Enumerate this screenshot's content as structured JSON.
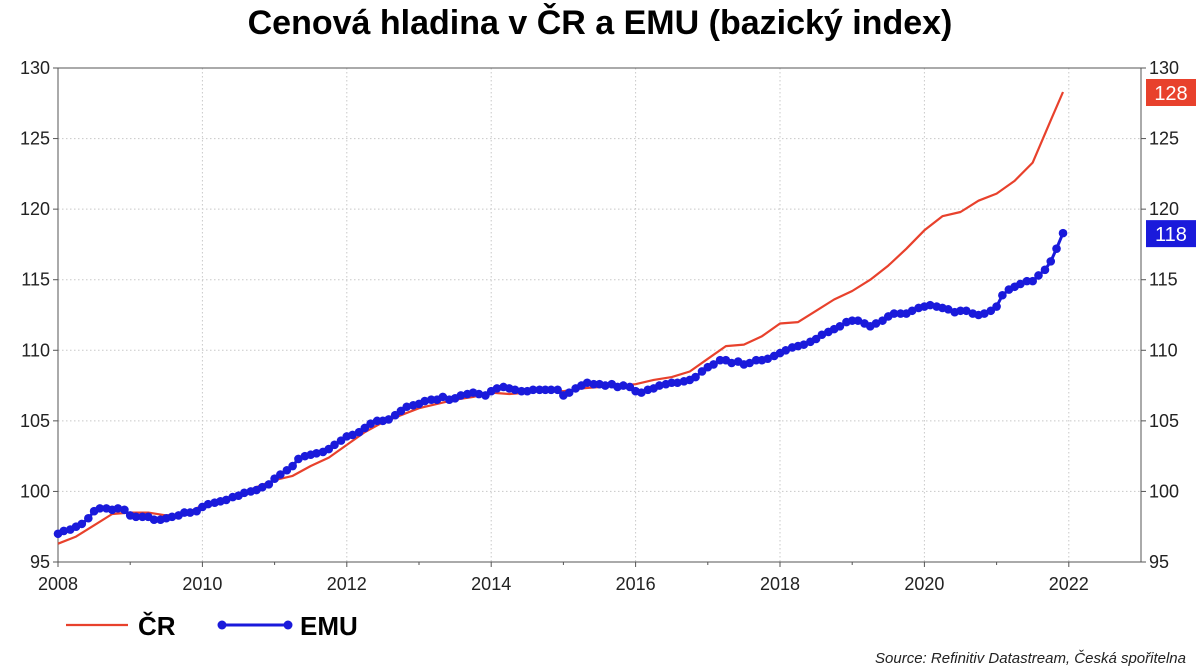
{
  "chart_data": {
    "type": "line",
    "title": "Cenová hladina v ČR a EMU (bazický index)",
    "source": "Source: Refinitiv Datastream, Česká spořitelna",
    "xlim": [
      2008,
      2023
    ],
    "ylim": [
      95,
      130
    ],
    "x_ticks": [
      "2008",
      "2010",
      "2012",
      "2014",
      "2016",
      "2018",
      "2020",
      "2022"
    ],
    "y_ticks": [
      "95",
      "100",
      "105",
      "110",
      "115",
      "120",
      "125",
      "130"
    ],
    "grid": true,
    "legend_position": "bottom-left",
    "series": [
      {
        "name": "ČR",
        "color": "#e8412c",
        "markers": false,
        "end_label": "128",
        "points": [
          [
            2008.0,
            96.3
          ],
          [
            2008.25,
            96.8
          ],
          [
            2008.5,
            97.6
          ],
          [
            2008.75,
            98.4
          ],
          [
            2009.0,
            98.5
          ],
          [
            2009.25,
            98.5
          ],
          [
            2009.5,
            98.3
          ],
          [
            2009.75,
            98.4
          ],
          [
            2010.0,
            99.0
          ],
          [
            2010.25,
            99.4
          ],
          [
            2010.5,
            99.8
          ],
          [
            2010.75,
            100.3
          ],
          [
            2011.0,
            100.8
          ],
          [
            2011.25,
            101.1
          ],
          [
            2011.5,
            101.8
          ],
          [
            2011.75,
            102.4
          ],
          [
            2012.0,
            103.3
          ],
          [
            2012.25,
            104.2
          ],
          [
            2012.5,
            104.9
          ],
          [
            2012.75,
            105.4
          ],
          [
            2013.0,
            105.9
          ],
          [
            2013.25,
            106.2
          ],
          [
            2013.5,
            106.5
          ],
          [
            2013.75,
            106.7
          ],
          [
            2014.0,
            107.0
          ],
          [
            2014.25,
            106.9
          ],
          [
            2014.5,
            107.0
          ],
          [
            2014.75,
            107.2
          ],
          [
            2015.0,
            107.1
          ],
          [
            2015.25,
            107.3
          ],
          [
            2015.5,
            107.4
          ],
          [
            2015.75,
            107.5
          ],
          [
            2016.0,
            107.6
          ],
          [
            2016.25,
            107.9
          ],
          [
            2016.5,
            108.1
          ],
          [
            2016.75,
            108.5
          ],
          [
            2017.0,
            109.4
          ],
          [
            2017.25,
            110.3
          ],
          [
            2017.5,
            110.4
          ],
          [
            2017.75,
            111.0
          ],
          [
            2018.0,
            111.9
          ],
          [
            2018.25,
            112.0
          ],
          [
            2018.5,
            112.8
          ],
          [
            2018.75,
            113.6
          ],
          [
            2019.0,
            114.2
          ],
          [
            2019.25,
            115.0
          ],
          [
            2019.5,
            116.0
          ],
          [
            2019.75,
            117.2
          ],
          [
            2020.0,
            118.5
          ],
          [
            2020.25,
            119.5
          ],
          [
            2020.5,
            119.8
          ],
          [
            2020.75,
            120.6
          ],
          [
            2021.0,
            121.1
          ],
          [
            2021.25,
            122.0
          ],
          [
            2021.5,
            123.3
          ],
          [
            2021.75,
            126.3
          ],
          [
            2021.92,
            128.3
          ]
        ]
      },
      {
        "name": "EMU",
        "color": "#1a1adb",
        "markers": true,
        "end_label": "118",
        "points": [
          [
            2008.0,
            97.0
          ],
          [
            2008.08,
            97.2
          ],
          [
            2008.17,
            97.3
          ],
          [
            2008.25,
            97.5
          ],
          [
            2008.33,
            97.7
          ],
          [
            2008.42,
            98.1
          ],
          [
            2008.5,
            98.6
          ],
          [
            2008.58,
            98.8
          ],
          [
            2008.67,
            98.8
          ],
          [
            2008.75,
            98.7
          ],
          [
            2008.83,
            98.8
          ],
          [
            2008.92,
            98.7
          ],
          [
            2009.0,
            98.3
          ],
          [
            2009.08,
            98.2
          ],
          [
            2009.17,
            98.2
          ],
          [
            2009.25,
            98.2
          ],
          [
            2009.33,
            98.0
          ],
          [
            2009.42,
            98.0
          ],
          [
            2009.5,
            98.1
          ],
          [
            2009.58,
            98.2
          ],
          [
            2009.67,
            98.3
          ],
          [
            2009.75,
            98.5
          ],
          [
            2009.83,
            98.5
          ],
          [
            2009.92,
            98.6
          ],
          [
            2010.0,
            98.9
          ],
          [
            2010.08,
            99.1
          ],
          [
            2010.17,
            99.2
          ],
          [
            2010.25,
            99.3
          ],
          [
            2010.33,
            99.4
          ],
          [
            2010.42,
            99.6
          ],
          [
            2010.5,
            99.7
          ],
          [
            2010.58,
            99.9
          ],
          [
            2010.67,
            100.0
          ],
          [
            2010.75,
            100.1
          ],
          [
            2010.83,
            100.3
          ],
          [
            2010.92,
            100.5
          ],
          [
            2011.0,
            100.9
          ],
          [
            2011.08,
            101.2
          ],
          [
            2011.17,
            101.5
          ],
          [
            2011.25,
            101.8
          ],
          [
            2011.33,
            102.3
          ],
          [
            2011.42,
            102.5
          ],
          [
            2011.5,
            102.6
          ],
          [
            2011.58,
            102.7
          ],
          [
            2011.67,
            102.8
          ],
          [
            2011.75,
            103.0
          ],
          [
            2011.83,
            103.3
          ],
          [
            2011.92,
            103.6
          ],
          [
            2012.0,
            103.9
          ],
          [
            2012.08,
            104.0
          ],
          [
            2012.17,
            104.2
          ],
          [
            2012.25,
            104.5
          ],
          [
            2012.33,
            104.8
          ],
          [
            2012.42,
            105.0
          ],
          [
            2012.5,
            105.0
          ],
          [
            2012.58,
            105.1
          ],
          [
            2012.67,
            105.4
          ],
          [
            2012.75,
            105.7
          ],
          [
            2012.83,
            106.0
          ],
          [
            2012.92,
            106.1
          ],
          [
            2013.0,
            106.2
          ],
          [
            2013.08,
            106.4
          ],
          [
            2013.17,
            106.5
          ],
          [
            2013.25,
            106.5
          ],
          [
            2013.33,
            106.7
          ],
          [
            2013.42,
            106.5
          ],
          [
            2013.5,
            106.6
          ],
          [
            2013.58,
            106.8
          ],
          [
            2013.67,
            106.9
          ],
          [
            2013.75,
            107.0
          ],
          [
            2013.83,
            106.9
          ],
          [
            2013.92,
            106.8
          ],
          [
            2014.0,
            107.1
          ],
          [
            2014.08,
            107.3
          ],
          [
            2014.17,
            107.4
          ],
          [
            2014.25,
            107.3
          ],
          [
            2014.33,
            107.2
          ],
          [
            2014.42,
            107.1
          ],
          [
            2014.5,
            107.1
          ],
          [
            2014.58,
            107.2
          ],
          [
            2014.67,
            107.2
          ],
          [
            2014.75,
            107.2
          ],
          [
            2014.83,
            107.2
          ],
          [
            2014.92,
            107.2
          ],
          [
            2015.0,
            106.8
          ],
          [
            2015.08,
            107.0
          ],
          [
            2015.17,
            107.3
          ],
          [
            2015.25,
            107.5
          ],
          [
            2015.33,
            107.7
          ],
          [
            2015.42,
            107.6
          ],
          [
            2015.5,
            107.6
          ],
          [
            2015.58,
            107.5
          ],
          [
            2015.67,
            107.6
          ],
          [
            2015.75,
            107.4
          ],
          [
            2015.83,
            107.5
          ],
          [
            2015.92,
            107.4
          ],
          [
            2016.0,
            107.1
          ],
          [
            2016.08,
            107.0
          ],
          [
            2016.17,
            107.2
          ],
          [
            2016.25,
            107.3
          ],
          [
            2016.33,
            107.5
          ],
          [
            2016.42,
            107.6
          ],
          [
            2016.5,
            107.7
          ],
          [
            2016.58,
            107.7
          ],
          [
            2016.67,
            107.8
          ],
          [
            2016.75,
            107.9
          ],
          [
            2016.83,
            108.1
          ],
          [
            2016.92,
            108.5
          ],
          [
            2017.0,
            108.8
          ],
          [
            2017.08,
            109.0
          ],
          [
            2017.17,
            109.3
          ],
          [
            2017.25,
            109.3
          ],
          [
            2017.33,
            109.1
          ],
          [
            2017.42,
            109.2
          ],
          [
            2017.5,
            109.0
          ],
          [
            2017.58,
            109.1
          ],
          [
            2017.67,
            109.3
          ],
          [
            2017.75,
            109.3
          ],
          [
            2017.83,
            109.4
          ],
          [
            2017.92,
            109.6
          ],
          [
            2018.0,
            109.8
          ],
          [
            2018.08,
            110.0
          ],
          [
            2018.17,
            110.2
          ],
          [
            2018.25,
            110.3
          ],
          [
            2018.33,
            110.4
          ],
          [
            2018.42,
            110.6
          ],
          [
            2018.5,
            110.8
          ],
          [
            2018.58,
            111.1
          ],
          [
            2018.67,
            111.3
          ],
          [
            2018.75,
            111.5
          ],
          [
            2018.83,
            111.7
          ],
          [
            2018.92,
            112.0
          ],
          [
            2019.0,
            112.1
          ],
          [
            2019.08,
            112.1
          ],
          [
            2019.17,
            111.9
          ],
          [
            2019.25,
            111.7
          ],
          [
            2019.33,
            111.9
          ],
          [
            2019.42,
            112.1
          ],
          [
            2019.5,
            112.4
          ],
          [
            2019.58,
            112.6
          ],
          [
            2019.67,
            112.6
          ],
          [
            2019.75,
            112.6
          ],
          [
            2019.83,
            112.8
          ],
          [
            2019.92,
            113.0
          ],
          [
            2020.0,
            113.1
          ],
          [
            2020.08,
            113.2
          ],
          [
            2020.17,
            113.1
          ],
          [
            2020.25,
            113.0
          ],
          [
            2020.33,
            112.9
          ],
          [
            2020.42,
            112.7
          ],
          [
            2020.5,
            112.8
          ],
          [
            2020.58,
            112.8
          ],
          [
            2020.67,
            112.6
          ],
          [
            2020.75,
            112.5
          ],
          [
            2020.83,
            112.6
          ],
          [
            2020.92,
            112.8
          ],
          [
            2021.0,
            113.1
          ],
          [
            2021.08,
            113.9
          ],
          [
            2021.17,
            114.3
          ],
          [
            2021.25,
            114.5
          ],
          [
            2021.33,
            114.7
          ],
          [
            2021.42,
            114.9
          ],
          [
            2021.5,
            114.9
          ],
          [
            2021.58,
            115.3
          ],
          [
            2021.67,
            115.7
          ],
          [
            2021.75,
            116.3
          ],
          [
            2021.83,
            117.2
          ],
          [
            2021.92,
            118.3
          ]
        ]
      }
    ]
  }
}
